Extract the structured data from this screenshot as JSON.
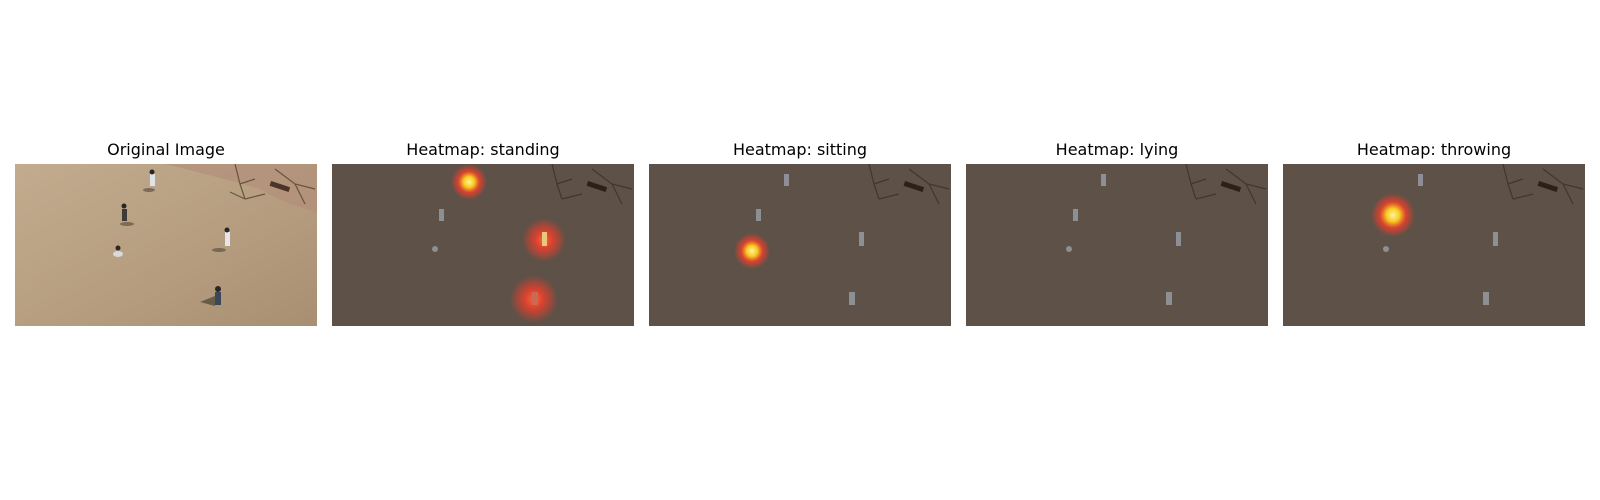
{
  "figure": {
    "panels": [
      {
        "title": "Original Image",
        "kind": "original",
        "hotspots": []
      },
      {
        "title": "Heatmap: standing",
        "kind": "heatmap",
        "hotspots": [
          "person-top",
          "person-right",
          "person-bottom"
        ]
      },
      {
        "title": "Heatmap: sitting",
        "kind": "heatmap",
        "hotspots": [
          "person-left-crouching"
        ]
      },
      {
        "title": "Heatmap: lying",
        "kind": "heatmap",
        "hotspots": []
      },
      {
        "title": "Heatmap: throwing",
        "kind": "heatmap",
        "hotspots": [
          "person-upper-left"
        ]
      }
    ]
  },
  "colors": {
    "ground": "#b59c7e",
    "ground_dim": "#5e5147",
    "heat_core": "#fff3a0",
    "heat_mid": "#ffd21e",
    "heat_outer": "#ff3c28"
  }
}
